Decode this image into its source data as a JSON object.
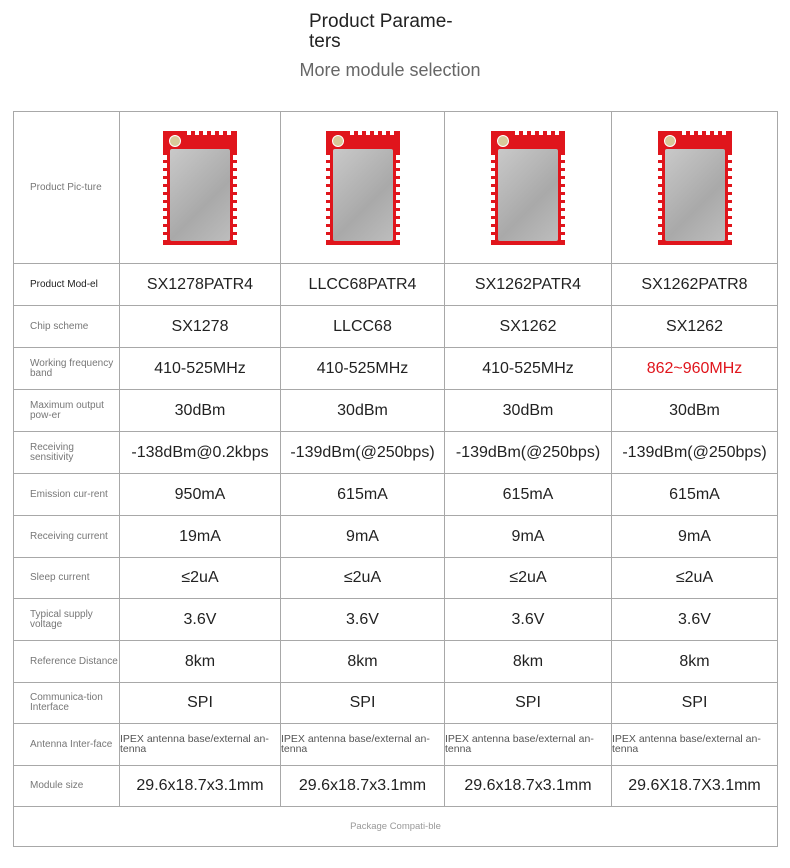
{
  "header": {
    "title": "Product Parame-ters",
    "subtitle": "More module selection"
  },
  "colors": {
    "highlight": "#e0151c",
    "module_pcb": "#e0151c"
  },
  "table": {
    "picture_label": "Product Pic-ture",
    "rows": [
      {
        "label": "Product Mod-el",
        "values": [
          "SX1278PATR4",
          "LLCC68PATR4",
          "SX1262PATR4",
          "SX1262PATR8"
        ]
      },
      {
        "label": "Chip scheme",
        "values": [
          "SX1278",
          "LLCC68",
          "SX1262",
          "SX1262"
        ]
      },
      {
        "label": "Working frequency band",
        "values": [
          "410-525MHz",
          "410-525MHz",
          "410-525MHz",
          "862~960MHz"
        ]
      },
      {
        "label": "Maximum output pow-er",
        "values": [
          "30dBm",
          "30dBm",
          "30dBm",
          "30dBm"
        ]
      },
      {
        "label": "Receiving sensitivity",
        "values": [
          "-138dBm@0.2kbps",
          "-139dBm(@250bps)",
          "-139dBm(@250bps)",
          "-139dBm(@250bps)"
        ]
      },
      {
        "label": "Emission cur-rent",
        "values": [
          "950mA",
          "615mA",
          "615mA",
          "615mA"
        ]
      },
      {
        "label": "Receiving current",
        "values": [
          "19mA",
          "9mA",
          "9mA",
          "9mA"
        ]
      },
      {
        "label": "Sleep current",
        "values": [
          "≤2uA",
          "≤2uA",
          "≤2uA",
          "≤2uA"
        ]
      },
      {
        "label": "Typical supply voltage",
        "values": [
          "3.6V",
          "3.6V",
          "3.6V",
          "3.6V"
        ]
      },
      {
        "label": "Reference Distance",
        "values": [
          "8km",
          "8km",
          "8km",
          "8km"
        ]
      },
      {
        "label": "Communica-tion Interface",
        "values": [
          "SPI",
          "SPI",
          "SPI",
          "SPI"
        ]
      },
      {
        "label": "Antenna Inter-face",
        "values": [
          "IPEX antenna base/external an-tenna",
          "IPEX antenna base/external an-tenna",
          "IPEX antenna base/external an-tenna",
          "IPEX antenna base/external an-tenna"
        ]
      },
      {
        "label": "Module size",
        "values": [
          "29.6x18.7x3.1mm",
          "29.6x18.7x3.1mm",
          "29.6x18.7x3.1mm",
          "29.6X18.7X3.1mm"
        ]
      }
    ],
    "footer": "Package Compati-ble"
  }
}
